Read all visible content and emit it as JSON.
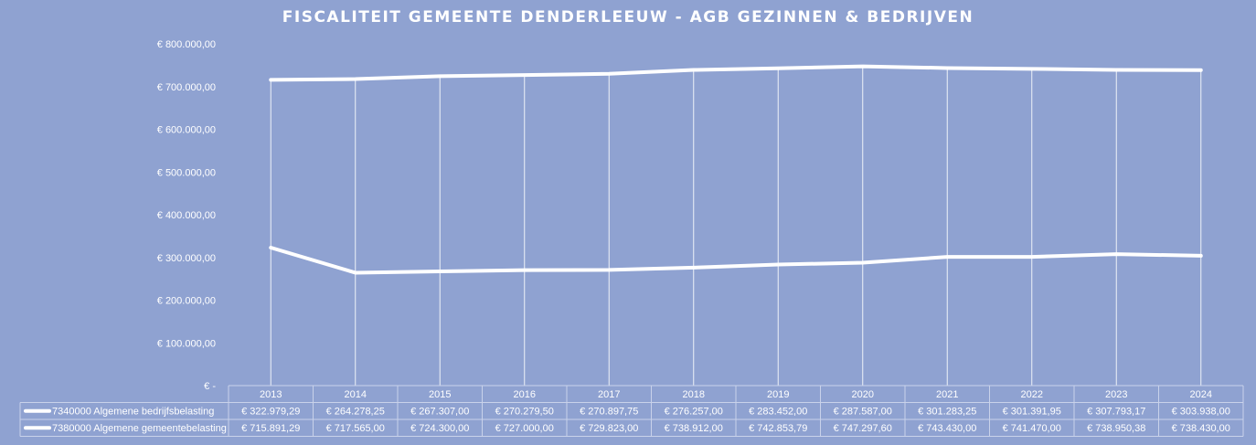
{
  "chart_data": {
    "type": "line",
    "title": "FISCALITEIT GEMEENTE DENDERLEEUW - AGB GEZINNEN & BEDRIJVEN",
    "xlabel": "",
    "ylabel": "",
    "ylim": [
      0,
      800000
    ],
    "yticks": [
      {
        "value": 0,
        "label": "€ -"
      },
      {
        "value": 100000,
        "label": "€ 100.000,00"
      },
      {
        "value": 200000,
        "label": "€ 200.000,00"
      },
      {
        "value": 300000,
        "label": "€ 300.000,00"
      },
      {
        "value": 400000,
        "label": "€ 400.000,00"
      },
      {
        "value": 500000,
        "label": "€ 500.000,00"
      },
      {
        "value": 600000,
        "label": "€ 600.000,00"
      },
      {
        "value": 700000,
        "label": "€ 700.000,00"
      },
      {
        "value": 800000,
        "label": "€ 800.000,00"
      }
    ],
    "grid": "vertical",
    "legend": "data-table",
    "categories": [
      "2013",
      "2014",
      "2015",
      "2016",
      "2017",
      "2018",
      "2019",
      "2020",
      "2021",
      "2022",
      "2023",
      "2024"
    ],
    "series": [
      {
        "name": "7340000 Algemene bedrijfsbelasting",
        "values": [
          322979.29,
          264278.25,
          267307.0,
          270279.5,
          270897.75,
          276257.0,
          283452.0,
          287587.0,
          301283.25,
          301391.95,
          307793.17,
          303938.0
        ],
        "labels": [
          "€ 322.979,29",
          "€ 264.278,25",
          "€ 267.307,00",
          "€ 270.279,50",
          "€ 270.897,75",
          "€ 276.257,00",
          "€ 283.452,00",
          "€ 287.587,00",
          "€ 301.283,25",
          "€ 301.391,95",
          "€ 307.793,17",
          "€ 303.938,00"
        ]
      },
      {
        "name": "7380000 Algemene gemeentebelasting",
        "values": [
          715891.29,
          717565.0,
          724300.0,
          727000.0,
          729823.0,
          738912.0,
          742853.79,
          747297.6,
          743430.0,
          741470.0,
          738950.38,
          738430.0
        ],
        "labels": [
          "€ 715.891,29",
          "€ 717.565,00",
          "€ 724.300,00",
          "€ 727.000,00",
          "€ 729.823,00",
          "€ 738.912,00",
          "€ 742.853,79",
          "€ 747.297,60",
          "€ 743.430,00",
          "€ 741.470,00",
          "€ 738.950,38",
          "€ 738.430,00"
        ]
      }
    ],
    "colors": {
      "line": "#ffffff",
      "background": "#8fa2d1"
    }
  }
}
